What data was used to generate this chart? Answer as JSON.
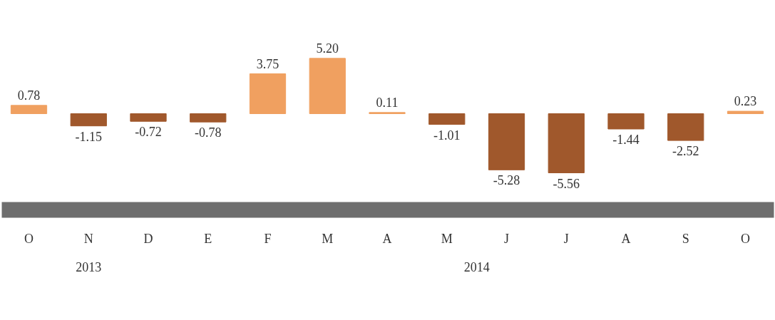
{
  "chart_data": {
    "type": "bar",
    "categories": [
      "O",
      "N",
      "D",
      "E",
      "F",
      "M",
      "A",
      "M",
      "J",
      "J",
      "A",
      "S",
      "O"
    ],
    "values": [
      0.78,
      -1.15,
      -0.72,
      -0.78,
      3.75,
      5.2,
      0.11,
      -1.01,
      -5.28,
      -5.56,
      -1.44,
      -2.52,
      0.23
    ],
    "colors": [
      "#f0a060",
      "#a0582c",
      "#a0582c",
      "#a0582c",
      "#f0a060",
      "#f0a060",
      "#f0a060",
      "#a0582c",
      "#a0582c",
      "#a0582c",
      "#a0582c",
      "#a0582c",
      "#f0a060"
    ],
    "value_labels": [
      "0.78",
      "-1.15",
      "-0.72",
      "-0.78",
      "3.75",
      "5.20",
      "0.11",
      "-1.01",
      "-5.28",
      "-5.56",
      "-1.44",
      "-2.52",
      "0.23"
    ],
    "grid": false,
    "annotations": [
      "2013",
      "2014"
    ]
  }
}
